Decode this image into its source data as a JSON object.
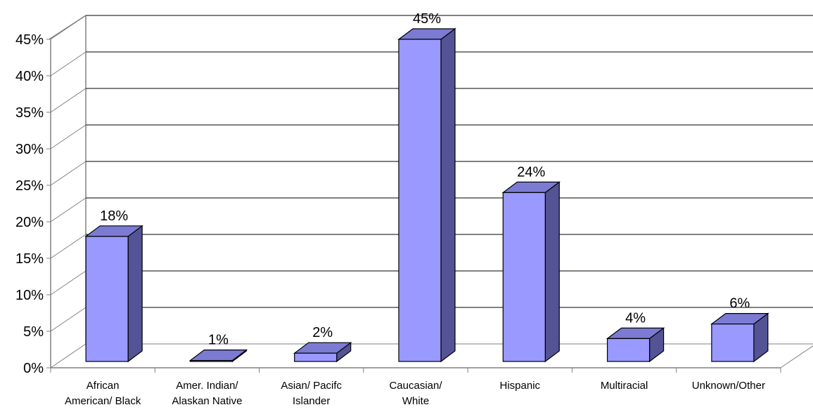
{
  "chart_data": {
    "type": "bar",
    "title": "",
    "xlabel": "",
    "ylabel": "",
    "categories": [
      [
        "African",
        "American/ Black"
      ],
      [
        "Amer. Indian/",
        "Alaskan Native"
      ],
      [
        "Asian/ Pacifc",
        "Islander"
      ],
      [
        "Caucasian/",
        "White"
      ],
      [
        "Hispanic"
      ],
      [
        "Multiracial"
      ],
      [
        "Unknown/Other"
      ]
    ],
    "values": [
      18,
      1,
      2,
      45,
      24,
      4,
      6
    ],
    "data_labels": [
      "18%",
      "1%",
      "2%",
      "45%",
      "24%",
      "4%",
      "6%"
    ],
    "ylim": [
      0,
      45
    ],
    "yticks": [
      0,
      5,
      10,
      15,
      20,
      25,
      30,
      35,
      40,
      45
    ],
    "ytick_labels": [
      "0%",
      "5%",
      "10%",
      "15%",
      "20%",
      "25%",
      "30%",
      "35%",
      "40%",
      "45%"
    ],
    "grid": true,
    "legend": "none",
    "style": "3d-column",
    "colors": {
      "bar_front": "#9999ff",
      "bar_top": "#7b7bd4",
      "bar_side": "#535396",
      "grid": "#000000",
      "axis": "#808080"
    }
  }
}
